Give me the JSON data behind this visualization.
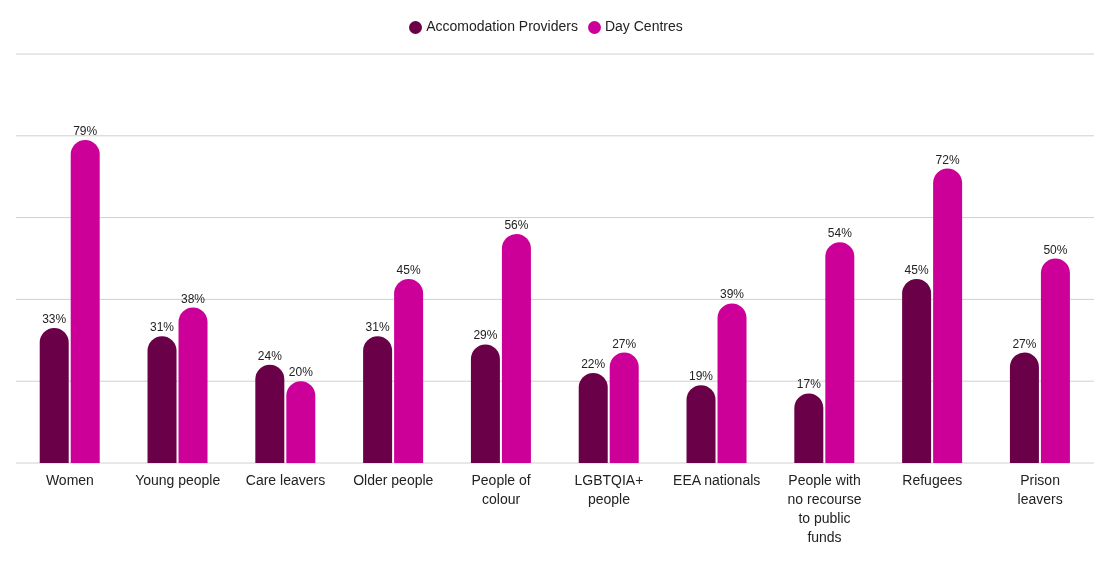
{
  "chart_data": {
    "type": "bar",
    "categories": [
      "Women",
      "Young people",
      "Care leavers",
      "Older people",
      "People of colour",
      "LGBTQIA+ people",
      "EEA nationals",
      "People with no recourse to public funds",
      "Refugees",
      "Prison leavers"
    ],
    "series": [
      {
        "name": "Accomodation Providers",
        "color": "#6a0048",
        "values": [
          33,
          31,
          24,
          31,
          29,
          22,
          19,
          17,
          45,
          27
        ],
        "value_labels": [
          "33%",
          "31%",
          "24%",
          "31%",
          "29%",
          "22%",
          "19%",
          "17%",
          "45%",
          "27%"
        ]
      },
      {
        "name": "Day Centres",
        "color": "#cc0099",
        "values": [
          79,
          38,
          20,
          45,
          56,
          27,
          39,
          54,
          72,
          50
        ],
        "value_labels": [
          "79%",
          "38%",
          "20%",
          "45%",
          "56%",
          "27%",
          "39%",
          "54%",
          "72%",
          "50%"
        ]
      }
    ],
    "tick_labels": "x",
    "grid": "y",
    "legend": "top"
  }
}
